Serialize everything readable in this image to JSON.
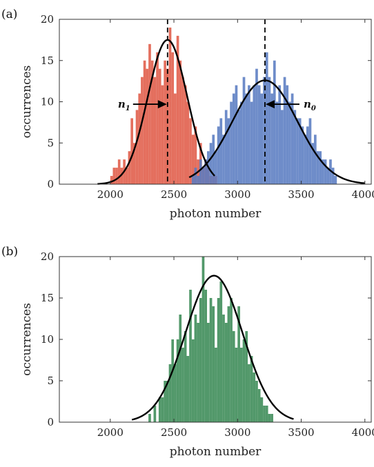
{
  "chart_data": [
    {
      "panel_label": "(a)",
      "type": "bar",
      "xlabel": "photon number",
      "ylabel": "occurrences",
      "xlim": [
        1600,
        4050
      ],
      "ylim": [
        0,
        20
      ],
      "xticks": [
        2000,
        2500,
        3000,
        3500,
        4000
      ],
      "yticks": [
        0,
        5,
        10,
        15,
        20
      ],
      "grid": false,
      "colors": {
        "n1": "#e05b48",
        "n0": "#5a7cc2",
        "fit": "#000000",
        "marker": "#000000"
      },
      "series": [
        {
          "id": "n1",
          "bin_width": 20,
          "x": [
            2000,
            2020,
            2040,
            2060,
            2080,
            2100,
            2120,
            2140,
            2160,
            2180,
            2200,
            2220,
            2240,
            2260,
            2280,
            2300,
            2320,
            2340,
            2360,
            2380,
            2400,
            2420,
            2440,
            2460,
            2480,
            2500,
            2520,
            2540,
            2560,
            2580,
            2600,
            2620,
            2640,
            2660,
            2680,
            2700,
            2720,
            2740,
            2760,
            2780,
            2800,
            2820
          ],
          "values": [
            1,
            2,
            2,
            3,
            2,
            3,
            2,
            4,
            8,
            5,
            9,
            11,
            13,
            15,
            14,
            17,
            15,
            13,
            16,
            14,
            12,
            15,
            14,
            19,
            16,
            11,
            18,
            15,
            13,
            12,
            10,
            8,
            6,
            7,
            3,
            5,
            2,
            3,
            2,
            1,
            1,
            1
          ]
        },
        {
          "id": "n0",
          "bin_width": 20,
          "x": [
            2640,
            2660,
            2680,
            2700,
            2720,
            2740,
            2760,
            2780,
            2800,
            2820,
            2840,
            2860,
            2880,
            2900,
            2920,
            2940,
            2960,
            2980,
            3000,
            3020,
            3040,
            3060,
            3080,
            3100,
            3120,
            3140,
            3160,
            3180,
            3200,
            3220,
            3240,
            3260,
            3280,
            3300,
            3320,
            3340,
            3360,
            3380,
            3400,
            3420,
            3440,
            3460,
            3480,
            3500,
            3520,
            3540,
            3560,
            3580,
            3600,
            3620,
            3640,
            3660,
            3680,
            3700,
            3720,
            3740,
            3760
          ],
          "values": [
            1,
            2,
            1,
            3,
            2,
            3,
            4,
            5,
            6,
            4,
            7,
            8,
            6,
            9,
            8,
            10,
            11,
            12,
            9,
            10,
            13,
            11,
            12,
            10,
            12,
            14,
            12,
            11,
            13,
            16,
            13,
            11,
            15,
            10,
            12,
            9,
            13,
            12,
            10,
            11,
            9,
            8,
            8,
            7,
            6,
            7,
            8,
            5,
            6,
            4,
            4,
            3,
            3,
            2,
            3,
            2,
            1
          ]
        }
      ],
      "fits": [
        {
          "for": "n1",
          "mean": 2450,
          "sigma": 155,
          "peak": 17.5,
          "x_range": [
            1900,
            2820
          ]
        },
        {
          "for": "n0",
          "mean": 3215,
          "sigma": 255,
          "peak": 12.6,
          "x_range": [
            2620,
            4000
          ]
        }
      ],
      "markers": [
        {
          "label": "n1",
          "label_main": "n",
          "label_sub": "1",
          "x": 2450,
          "side": "left",
          "arrow_y": 9.7
        },
        {
          "label": "n0",
          "label_main": "n",
          "label_sub": "0",
          "x": 3215,
          "side": "right",
          "arrow_y": 9.7
        }
      ]
    },
    {
      "panel_label": "(b)",
      "type": "bar",
      "xlabel": "photon number",
      "ylabel": "occurrences",
      "xlim": [
        1600,
        4050
      ],
      "ylim": [
        0,
        20
      ],
      "xticks": [
        2000,
        2500,
        3000,
        3500,
        4000
      ],
      "yticks": [
        0,
        5,
        10,
        15,
        20
      ],
      "grid": false,
      "colors": {
        "bars": "#3a8a55",
        "fit": "#000000"
      },
      "series": [
        {
          "id": "b",
          "bin_width": 20,
          "x": [
            2300,
            2340,
            2380,
            2400,
            2420,
            2440,
            2460,
            2480,
            2500,
            2520,
            2540,
            2560,
            2580,
            2600,
            2620,
            2640,
            2660,
            2680,
            2700,
            2720,
            2740,
            2760,
            2780,
            2800,
            2820,
            2840,
            2860,
            2880,
            2900,
            2920,
            2940,
            2960,
            2980,
            3000,
            3020,
            3040,
            3060,
            3080,
            3100,
            3120,
            3140,
            3160,
            3180,
            3200,
            3220,
            3240,
            3260
          ],
          "values": [
            1,
            2,
            3,
            3,
            5,
            5,
            7,
            10,
            7,
            10,
            13,
            9,
            11,
            8,
            16,
            10,
            13,
            12,
            15,
            20,
            16,
            12,
            15,
            14,
            9,
            15,
            17,
            13,
            12,
            14,
            15,
            11,
            9,
            14,
            9,
            10,
            11,
            7,
            8,
            6,
            5,
            4,
            3,
            2,
            2,
            1,
            1
          ]
        }
      ],
      "fits": [
        {
          "for": "b",
          "mean": 2815,
          "sigma": 225,
          "peak": 17.7,
          "x_range": [
            2170,
            3440
          ]
        }
      ]
    }
  ]
}
